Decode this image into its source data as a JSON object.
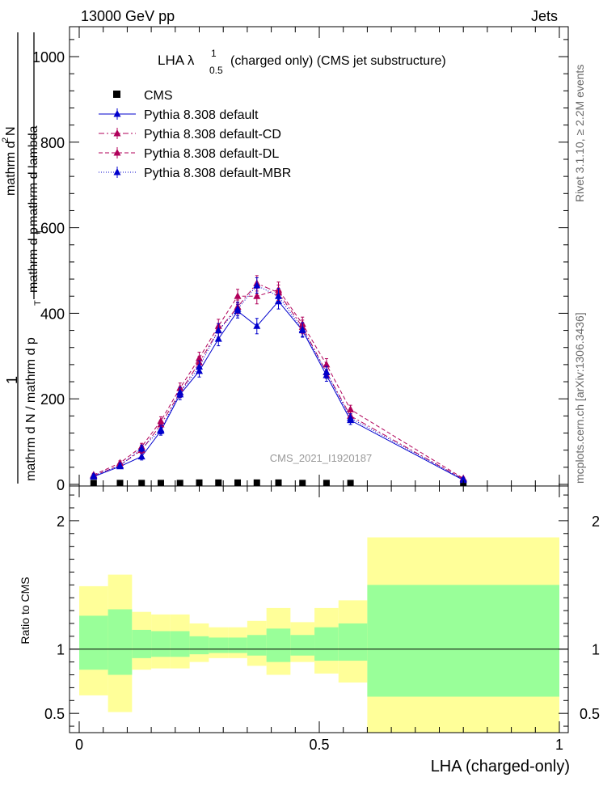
{
  "header": {
    "left": "13000 GeV pp",
    "right": "Jets"
  },
  "side_labels": {
    "rivet": "Rivet 3.1.10, ≥ 2.2M events",
    "mcplots": "mcplots.cern.ch [arXiv:1306.3436]"
  },
  "chart_data": [
    {
      "type": "line",
      "title_main": "LHA λ",
      "title_sup": "1",
      "title_sub": "0.5",
      "title_rest": "(charged only) (CMS jet substructure)",
      "ylabel_a": "1",
      "ylabel_b": "mathrm d N / mathrm d p",
      "ylabel_b_sub": "T",
      "ylabel_c": "mathrm d",
      "ylabel_c_sup": "2",
      "ylabel_c_rest": "N",
      "ylabel_d": "mathrm d p",
      "ylabel_d_sub": "T",
      "ylabel_d_rest": "mathrm d lambda",
      "watermark": "CMS_2021_I1920187",
      "xlim": [
        0,
        1
      ],
      "ylim": [
        0,
        1070
      ],
      "yticks": [
        0,
        200,
        400,
        600,
        800,
        1000
      ],
      "ytick_labels": [
        "0",
        "200",
        "400",
        "600",
        "800",
        "1000"
      ],
      "x": [
        0.03,
        0.085,
        0.13,
        0.17,
        0.21,
        0.25,
        0.29,
        0.33,
        0.37,
        0.415,
        0.465,
        0.515,
        0.565,
        0.8
      ],
      "series": [
        {
          "name": "CMS",
          "color": "#000000",
          "marker": "square",
          "values": [
            3,
            3,
            3,
            3,
            3,
            4,
            4,
            4,
            4,
            4,
            3,
            3,
            3,
            3
          ]
        },
        {
          "name": "Pythia 8.308 default",
          "color": "#0000cc",
          "marker": "triangle",
          "dash": "",
          "values": [
            18,
            42,
            65,
            125,
            210,
            265,
            340,
            405,
            370,
            428,
            360,
            255,
            150,
            10
          ],
          "errors": [
            4,
            5,
            8,
            10,
            12,
            14,
            16,
            16,
            18,
            18,
            16,
            14,
            10,
            3
          ]
        },
        {
          "name": "Pythia 8.308 default-CD",
          "color": "#b0005a",
          "marker": "triangle",
          "dash": "7,3,2,3",
          "values": [
            20,
            45,
            80,
            140,
            215,
            285,
            360,
            415,
            470,
            448,
            368,
            262,
            160,
            12
          ],
          "errors": [
            4,
            5,
            8,
            10,
            12,
            14,
            16,
            16,
            18,
            18,
            16,
            14,
            10,
            3
          ]
        },
        {
          "name": "Pythia 8.308 default-DL",
          "color": "#b0005a",
          "marker": "triangle",
          "dash": "5,3",
          "values": [
            22,
            50,
            88,
            148,
            225,
            295,
            370,
            440,
            440,
            455,
            375,
            280,
            175,
            14
          ],
          "errors": [
            4,
            5,
            8,
            10,
            12,
            14,
            16,
            16,
            18,
            18,
            16,
            14,
            10,
            3
          ]
        },
        {
          "name": "Pythia 8.308 default-MBR",
          "color": "#0000cc",
          "marker": "triangle",
          "dash": "1,2",
          "values": [
            20,
            44,
            84,
            128,
            215,
            275,
            360,
            410,
            465,
            440,
            362,
            262,
            155,
            12
          ],
          "errors": [
            4,
            5,
            8,
            10,
            12,
            14,
            16,
            16,
            18,
            18,
            16,
            14,
            10,
            3
          ]
        }
      ]
    },
    {
      "type": "area",
      "ylabel": "Ratio to CMS",
      "xlabel": "LHA (charged-only)",
      "xlim": [
        0,
        1
      ],
      "ylim": [
        0.35,
        2.27
      ],
      "xticks": [
        0,
        0.5,
        1
      ],
      "xtick_labels": [
        "0",
        "0.5",
        "1"
      ],
      "yticks": [
        0.5,
        1,
        2
      ],
      "ytick_labels": [
        "0.5",
        "1",
        "2"
      ],
      "band_inner_color": "#99ff99",
      "band_outer_color": "#ffff99",
      "bins": [
        {
          "x0": 0.0,
          "x1": 0.06,
          "inner": [
            0.84,
            1.26
          ],
          "outer": [
            0.64,
            1.49
          ]
        },
        {
          "x0": 0.06,
          "x1": 0.11,
          "inner": [
            0.8,
            1.31
          ],
          "outer": [
            0.51,
            1.58
          ]
        },
        {
          "x0": 0.11,
          "x1": 0.15,
          "inner": [
            0.93,
            1.15
          ],
          "outer": [
            0.84,
            1.29
          ]
        },
        {
          "x0": 0.15,
          "x1": 0.19,
          "inner": [
            0.94,
            1.14
          ],
          "outer": [
            0.85,
            1.27
          ]
        },
        {
          "x0": 0.19,
          "x1": 0.23,
          "inner": [
            0.94,
            1.14
          ],
          "outer": [
            0.85,
            1.27
          ]
        },
        {
          "x0": 0.23,
          "x1": 0.27,
          "inner": [
            0.96,
            1.1
          ],
          "outer": [
            0.9,
            1.2
          ]
        },
        {
          "x0": 0.27,
          "x1": 0.31,
          "inner": [
            0.97,
            1.09
          ],
          "outer": [
            0.93,
            1.17
          ]
        },
        {
          "x0": 0.31,
          "x1": 0.35,
          "inner": [
            0.97,
            1.09
          ],
          "outer": [
            0.93,
            1.17
          ]
        },
        {
          "x0": 0.35,
          "x1": 0.39,
          "inner": [
            0.95,
            1.11
          ],
          "outer": [
            0.87,
            1.22
          ]
        },
        {
          "x0": 0.39,
          "x1": 0.44,
          "inner": [
            0.9,
            1.16
          ],
          "outer": [
            0.8,
            1.32
          ]
        },
        {
          "x0": 0.44,
          "x1": 0.49,
          "inner": [
            0.95,
            1.11
          ],
          "outer": [
            0.9,
            1.21
          ]
        },
        {
          "x0": 0.49,
          "x1": 0.54,
          "inner": [
            0.91,
            1.17
          ],
          "outer": [
            0.81,
            1.32
          ]
        },
        {
          "x0": 0.54,
          "x1": 0.6,
          "inner": [
            0.91,
            1.2
          ],
          "outer": [
            0.74,
            1.38
          ]
        },
        {
          "x0": 0.6,
          "x1": 1.0,
          "inner": [
            0.63,
            1.5
          ],
          "outer": [
            0.35,
            1.87
          ]
        }
      ]
    }
  ]
}
